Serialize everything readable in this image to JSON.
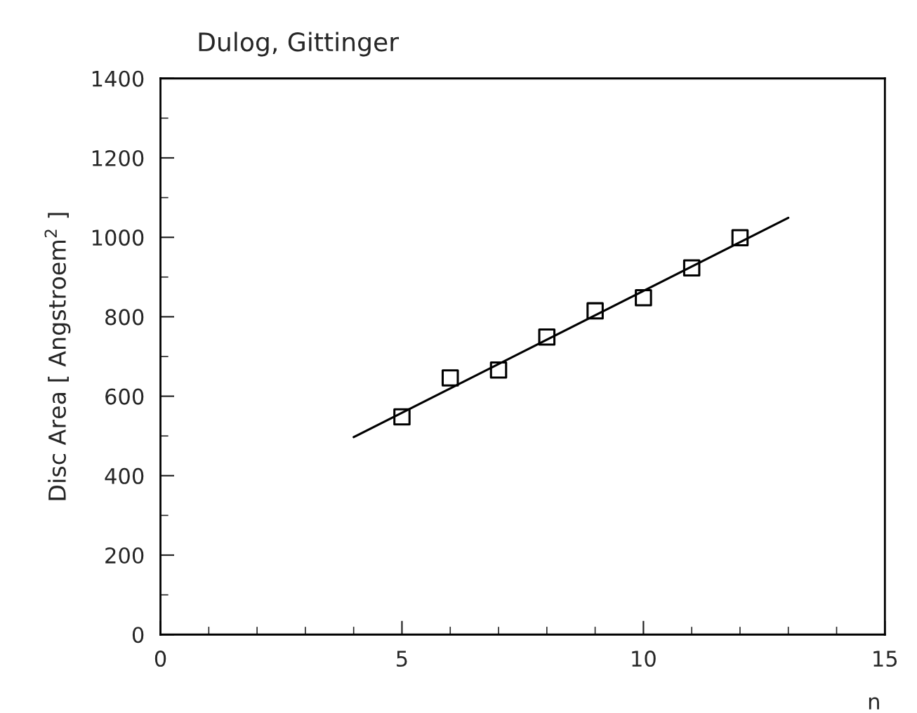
{
  "chart_data": {
    "type": "scatter",
    "title": "Dulog, Gittinger",
    "xlabel": "n",
    "ylabel": "Disc Area [ Angstroem$^{2}$ ]",
    "series": [
      {
        "color": "#000000",
        "marker": "square",
        "x": [
          5,
          6,
          7,
          8,
          9,
          10,
          11,
          12
        ],
        "values": [
          548,
          646,
          666,
          749,
          815,
          848,
          923,
          999
        ]
      },
      {
        "type": "line",
        "color": "#000000",
        "marker": "none",
        "line_style": "solid",
        "x": [
          4,
          13
        ],
        "values": [
          497,
          1049
        ]
      }
    ],
    "xlim": [
      0,
      15
    ],
    "xticks": [
      0,
      5,
      10,
      15
    ],
    "ylim": [
      0,
      1400
    ],
    "yticks": [
      0,
      200,
      400,
      600,
      800,
      1000,
      1200,
      1400
    ],
    "grid": false,
    "legend": false
  }
}
